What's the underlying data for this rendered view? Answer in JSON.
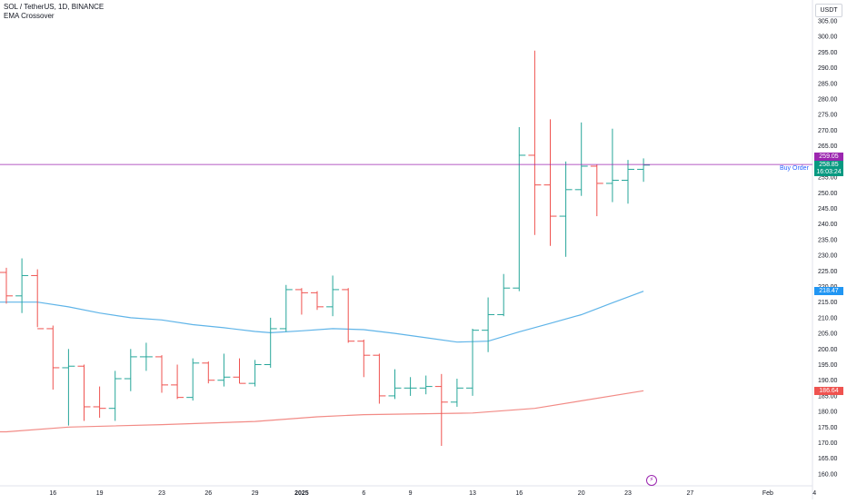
{
  "header": {
    "symbol_line": "SOL / TetherUS, 1D, BINANCE",
    "indicator_line": "EMA Crossover"
  },
  "currency_button": "USDT",
  "buy_order_label": "Buy Order",
  "price_tags": {
    "price_line": "259.05",
    "last_price": "258.85",
    "countdown": "16:03:24",
    "ema_fast": "218.47",
    "ema_slow": "186.64"
  },
  "colors": {
    "up": "#26a69a",
    "down": "#ef5350",
    "ema_fast": "#5fb4e8",
    "ema_slow": "#f28b86",
    "price_line": "#9c27b0",
    "last_price_tag": "#089981",
    "ema_fast_tag": "#2196f3",
    "ema_slow_tag": "#ef5350"
  },
  "chart_data": {
    "type": "ohlc",
    "y_axis": {
      "min": 160,
      "max": 305,
      "ticks": [
        "160.00",
        "165.00",
        "170.00",
        "175.00",
        "180.00",
        "185.00",
        "190.00",
        "195.00",
        "200.00",
        "205.00",
        "210.00",
        "215.00",
        "220.00",
        "225.00",
        "230.00",
        "235.00",
        "240.00",
        "245.00",
        "250.00",
        "255.00",
        "260.00",
        "265.00",
        "270.00",
        "275.00",
        "280.00",
        "285.00",
        "290.00",
        "295.00",
        "300.00",
        "305.00"
      ]
    },
    "x_labels": [
      {
        "idx": 3,
        "text": "16"
      },
      {
        "idx": 6,
        "text": "19"
      },
      {
        "idx": 10,
        "text": "23"
      },
      {
        "idx": 13,
        "text": "26"
      },
      {
        "idx": 16,
        "text": "29"
      },
      {
        "idx": 19,
        "text": "2025",
        "bold": true
      },
      {
        "idx": 23,
        "text": "6"
      },
      {
        "idx": 26,
        "text": "9"
      },
      {
        "idx": 30,
        "text": "13"
      },
      {
        "idx": 33,
        "text": "16"
      },
      {
        "idx": 37,
        "text": "20"
      },
      {
        "idx": 40,
        "text": "23"
      },
      {
        "idx": 44,
        "text": "27"
      },
      {
        "idx": 49,
        "text": "Feb"
      },
      {
        "idx": 52,
        "text": "4"
      }
    ],
    "bars": [
      {
        "o": 224.5,
        "h": 226.0,
        "l": 214.5,
        "c": 217.0
      },
      {
        "o": 217.0,
        "h": 229.0,
        "l": 211.5,
        "c": 223.5
      },
      {
        "o": 223.5,
        "h": 225.5,
        "l": 207.0,
        "c": 206.5
      },
      {
        "o": 206.5,
        "h": 207.5,
        "l": 187.0,
        "c": 194.0
      },
      {
        "o": 194.0,
        "h": 200.0,
        "l": 175.5,
        "c": 194.5
      },
      {
        "o": 194.5,
        "h": 195.0,
        "l": 177.0,
        "c": 181.5
      },
      {
        "o": 181.5,
        "h": 188.0,
        "l": 178.0,
        "c": 181.0
      },
      {
        "o": 181.0,
        "h": 193.0,
        "l": 177.0,
        "c": 190.5
      },
      {
        "o": 190.5,
        "h": 200.0,
        "l": 186.5,
        "c": 197.5
      },
      {
        "o": 197.5,
        "h": 202.0,
        "l": 193.0,
        "c": 197.5
      },
      {
        "o": 197.5,
        "h": 198.0,
        "l": 186.0,
        "c": 188.5
      },
      {
        "o": 188.5,
        "h": 195.0,
        "l": 184.0,
        "c": 184.5
      },
      {
        "o": 184.5,
        "h": 197.0,
        "l": 183.5,
        "c": 195.5
      },
      {
        "o": 195.5,
        "h": 196.0,
        "l": 189.0,
        "c": 190.0
      },
      {
        "o": 190.0,
        "h": 198.5,
        "l": 188.0,
        "c": 191.0
      },
      {
        "o": 191.0,
        "h": 197.0,
        "l": 189.0,
        "c": 189.0
      },
      {
        "o": 189.0,
        "h": 196.5,
        "l": 188.0,
        "c": 195.0
      },
      {
        "o": 195.0,
        "h": 210.0,
        "l": 194.0,
        "c": 206.5
      },
      {
        "o": 206.5,
        "h": 220.5,
        "l": 205.5,
        "c": 219.0
      },
      {
        "o": 219.0,
        "h": 219.5,
        "l": 211.0,
        "c": 218.0
      },
      {
        "o": 218.0,
        "h": 218.5,
        "l": 212.5,
        "c": 213.5
      },
      {
        "o": 213.5,
        "h": 223.5,
        "l": 210.5,
        "c": 219.0
      },
      {
        "o": 219.0,
        "h": 219.5,
        "l": 202.0,
        "c": 202.5
      },
      {
        "o": 202.5,
        "h": 203.0,
        "l": 191.0,
        "c": 198.0
      },
      {
        "o": 198.0,
        "h": 198.5,
        "l": 182.5,
        "c": 185.0
      },
      {
        "o": 185.0,
        "h": 193.5,
        "l": 184.0,
        "c": 187.5
      },
      {
        "o": 187.5,
        "h": 191.0,
        "l": 185.0,
        "c": 187.5
      },
      {
        "o": 187.5,
        "h": 191.5,
        "l": 185.5,
        "c": 188.0
      },
      {
        "o": 188.0,
        "h": 192.0,
        "l": 169.0,
        "c": 183.0
      },
      {
        "o": 183.0,
        "h": 190.5,
        "l": 181.5,
        "c": 187.5
      },
      {
        "o": 187.5,
        "h": 206.5,
        "l": 185.0,
        "c": 206.0
      },
      {
        "o": 206.0,
        "h": 216.5,
        "l": 199.0,
        "c": 211.0
      },
      {
        "o": 211.0,
        "h": 224.0,
        "l": 210.5,
        "c": 219.5
      },
      {
        "o": 219.5,
        "h": 271.0,
        "l": 218.5,
        "c": 262.0
      },
      {
        "o": 262.0,
        "h": 295.5,
        "l": 236.5,
        "c": 252.5
      },
      {
        "o": 252.5,
        "h": 273.5,
        "l": 233.0,
        "c": 242.5
      },
      {
        "o": 242.5,
        "h": 260.0,
        "l": 229.5,
        "c": 251.0
      },
      {
        "o": 251.0,
        "h": 272.5,
        "l": 249.0,
        "c": 258.5
      },
      {
        "o": 258.5,
        "h": 259.0,
        "l": 242.5,
        "c": 253.0
      },
      {
        "o": 253.0,
        "h": 270.5,
        "l": 247.0,
        "c": 254.0
      },
      {
        "o": 254.0,
        "h": 260.5,
        "l": 246.5,
        "c": 257.5
      },
      {
        "o": 257.5,
        "h": 261.0,
        "l": 253.5,
        "c": 258.85
      }
    ],
    "ema_fast": [
      {
        "i": 0,
        "v": 215.0
      },
      {
        "i": 2,
        "v": 215.0
      },
      {
        "i": 4,
        "v": 213.5
      },
      {
        "i": 6,
        "v": 211.5
      },
      {
        "i": 8,
        "v": 210.0
      },
      {
        "i": 10,
        "v": 209.3
      },
      {
        "i": 12,
        "v": 207.8
      },
      {
        "i": 14,
        "v": 206.8
      },
      {
        "i": 16,
        "v": 205.6
      },
      {
        "i": 17,
        "v": 205.2
      },
      {
        "i": 19,
        "v": 205.8
      },
      {
        "i": 21,
        "v": 206.5
      },
      {
        "i": 23,
        "v": 206.2
      },
      {
        "i": 25,
        "v": 205.0
      },
      {
        "i": 27,
        "v": 203.6
      },
      {
        "i": 29,
        "v": 202.2
      },
      {
        "i": 31,
        "v": 202.5
      },
      {
        "i": 33,
        "v": 205.5
      },
      {
        "i": 35,
        "v": 208.2
      },
      {
        "i": 37,
        "v": 211.0
      },
      {
        "i": 39,
        "v": 214.8
      },
      {
        "i": 41,
        "v": 218.47
      }
    ],
    "ema_slow": [
      {
        "i": 0,
        "v": 173.5
      },
      {
        "i": 4,
        "v": 175.0
      },
      {
        "i": 10,
        "v": 175.8
      },
      {
        "i": 16,
        "v": 176.8
      },
      {
        "i": 20,
        "v": 178.3
      },
      {
        "i": 23,
        "v": 179.0
      },
      {
        "i": 30,
        "v": 179.5
      },
      {
        "i": 34,
        "v": 181.0
      },
      {
        "i": 41,
        "v": 186.64
      }
    ],
    "price_line": 259.05,
    "axis_value_labels": [
      {
        "value": 259.05,
        "label": "259.05"
      },
      {
        "value": 258.85,
        "label": "258.85"
      },
      {
        "value": 218.47,
        "label": "218.47"
      },
      {
        "value": 186.64,
        "label": "186.64"
      }
    ]
  }
}
